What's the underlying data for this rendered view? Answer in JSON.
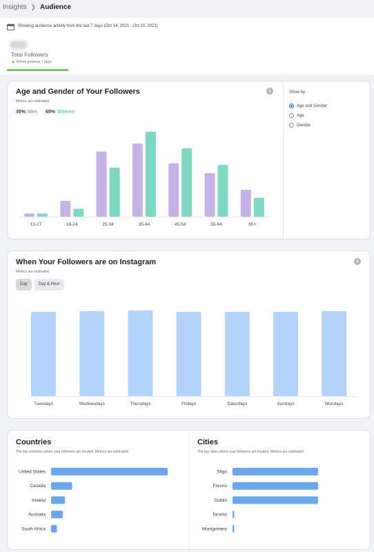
{
  "breadcrumb": {
    "parent": "Insights",
    "current": "Audience"
  },
  "summary": {
    "activity_text": "Showing audience activity from the last 7 days (Oct 14, 2021 - Oct 20, 2021)",
    "total_label": "Total Followers",
    "delta_text": "8 from previous 7 days"
  },
  "age_gender": {
    "title": "Age and Gender of Your Followers",
    "subtitle": "Metrics are estimated.",
    "men_pct": "35%",
    "men_label": "Men",
    "women_pct": "65%",
    "women_label": "Women",
    "show_by_title": "Show by:",
    "options": [
      "Age and Gender",
      "Age",
      "Gender"
    ],
    "selected_option": "Age and Gender"
  },
  "when": {
    "title": "When Your Followers are on Instagram",
    "subtitle": "Metrics are estimated.",
    "tabs": [
      "Day",
      "Day & Hour"
    ],
    "active_tab": "Day"
  },
  "countries": {
    "title": "Countries",
    "subtitle": "The top countries where your followers are located. Metrics are estimated."
  },
  "cities": {
    "title": "Cities",
    "subtitle": "The top cities where your followers are located. Metrics are estimated."
  },
  "colors": {
    "men": "#c5b3e6",
    "women": "#7dd8c4",
    "day_bar": "#b3d4fb",
    "loc_bar": "#6aa7f0",
    "accent": "#1877f2"
  },
  "chart_data": [
    {
      "type": "bar",
      "categories": [
        "13-17",
        "18-24",
        "25-34",
        "35-44",
        "45-54",
        "55-64",
        "65+"
      ],
      "series": [
        {
          "name": "Men",
          "values": [
            0.8,
            4.0,
            16.5,
            18.5,
            13.5,
            11.0,
            6.8
          ]
        },
        {
          "name": "Women",
          "values": [
            0.8,
            2.0,
            12.4,
            21.5,
            17.3,
            13.1,
            4.8
          ]
        }
      ],
      "ylim": [
        0,
        22
      ],
      "grid": false
    },
    {
      "type": "bar",
      "categories": [
        "Tuesdays",
        "Wednesdays",
        "Thursdays",
        "Fridays",
        "Saturdays",
        "Sundays",
        "Mondays"
      ],
      "values": [
        0.968,
        0.976,
        0.984,
        0.968,
        0.968,
        0.968,
        0.976
      ],
      "ylim": [
        0,
        1
      ],
      "grid": false
    },
    {
      "type": "bar",
      "orientation": "horizontal",
      "categories": [
        "United States",
        "Canada",
        "Ireland",
        "Australia",
        "South Africa"
      ],
      "values": [
        1.0,
        0.18,
        0.12,
        0.1,
        0.05
      ]
    },
    {
      "type": "bar",
      "orientation": "horizontal",
      "categories": [
        "Sligo",
        "Fresno",
        "Dublin",
        "Toronto",
        "Montgomery"
      ],
      "values": [
        1.0,
        1.0,
        1.0,
        0.02,
        0.02
      ]
    }
  ]
}
